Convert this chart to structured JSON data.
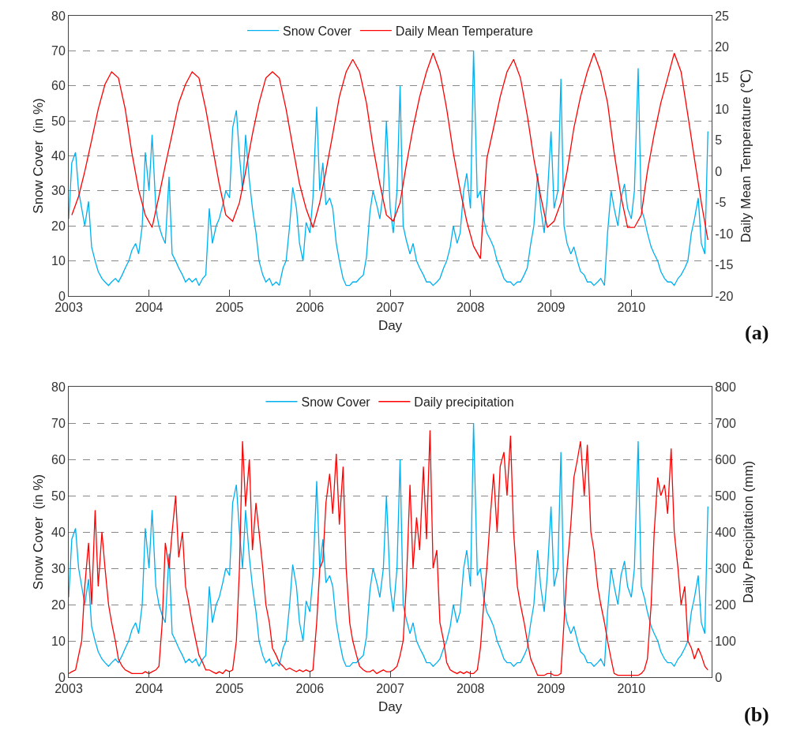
{
  "chart_data": [
    {
      "type": "line",
      "xlabel": "Day",
      "ylabel": "Snow Cover  (in %)",
      "y2label": "Daily Mean Temperature (℃)",
      "x": [
        "2003-01-01",
        "2003-01-15",
        "2003-02-01",
        "2003-02-15",
        "2003-03-01",
        "2003-03-15",
        "2003-04-01",
        "2003-04-15",
        "2003-05-01",
        "2003-05-15",
        "2003-06-01",
        "2003-06-15",
        "2003-07-01",
        "2003-07-15",
        "2003-08-01",
        "2003-08-15",
        "2003-09-01",
        "2003-09-15",
        "2003-10-01",
        "2003-10-15",
        "2003-11-01",
        "2003-11-15",
        "2003-12-01",
        "2003-12-15",
        "2004-01-01",
        "2004-01-15",
        "2004-02-01",
        "2004-02-15",
        "2004-03-01",
        "2004-03-15",
        "2004-04-01",
        "2004-04-15",
        "2004-05-01",
        "2004-05-15",
        "2004-06-01",
        "2004-06-15",
        "2004-07-01",
        "2004-07-15",
        "2004-08-01",
        "2004-08-15",
        "2004-09-01",
        "2004-09-15",
        "2004-10-01",
        "2004-10-15",
        "2004-11-01",
        "2004-11-15",
        "2004-12-01",
        "2004-12-15",
        "2005-01-01",
        "2005-01-15",
        "2005-02-01",
        "2005-02-15",
        "2005-03-01",
        "2005-03-15",
        "2005-04-01",
        "2005-04-15",
        "2005-05-01",
        "2005-05-15",
        "2005-06-01",
        "2005-06-15",
        "2005-07-01",
        "2005-07-15",
        "2005-08-01",
        "2005-08-15",
        "2005-09-01",
        "2005-09-15",
        "2005-10-01",
        "2005-10-15",
        "2005-11-01",
        "2005-11-15",
        "2005-12-01",
        "2005-12-15",
        "2006-01-01",
        "2006-01-15",
        "2006-02-01",
        "2006-02-15",
        "2006-03-01",
        "2006-03-15",
        "2006-04-01",
        "2006-04-15",
        "2006-05-01",
        "2006-05-15",
        "2006-06-01",
        "2006-06-15",
        "2006-07-01",
        "2006-07-15",
        "2006-08-01",
        "2006-08-15",
        "2006-09-01",
        "2006-09-15",
        "2006-10-01",
        "2006-10-15",
        "2006-11-01",
        "2006-11-15",
        "2006-12-01",
        "2006-12-15",
        "2007-01-01",
        "2007-01-15",
        "2007-02-01",
        "2007-02-15",
        "2007-03-01",
        "2007-03-15",
        "2007-04-01",
        "2007-04-15",
        "2007-05-01",
        "2007-05-15",
        "2007-06-01",
        "2007-06-15",
        "2007-07-01",
        "2007-07-15",
        "2007-08-01",
        "2007-08-15",
        "2007-09-01",
        "2007-09-15",
        "2007-10-01",
        "2007-10-15",
        "2007-11-01",
        "2007-11-15",
        "2007-12-01",
        "2007-12-15",
        "2008-01-01",
        "2008-01-15",
        "2008-02-01",
        "2008-02-15",
        "2008-03-01",
        "2008-03-15",
        "2008-04-01",
        "2008-04-15",
        "2008-05-01",
        "2008-05-15",
        "2008-06-01",
        "2008-06-15",
        "2008-07-01",
        "2008-07-15",
        "2008-08-01",
        "2008-08-15",
        "2008-09-01",
        "2008-09-15",
        "2008-10-01",
        "2008-10-15",
        "2008-11-01",
        "2008-11-15",
        "2008-12-01",
        "2008-12-15",
        "2009-01-01",
        "2009-01-15",
        "2009-02-01",
        "2009-02-15",
        "2009-03-01",
        "2009-03-15",
        "2009-04-01",
        "2009-04-15",
        "2009-05-01",
        "2009-05-15",
        "2009-06-01",
        "2009-06-15",
        "2009-07-01",
        "2009-07-15",
        "2009-08-01",
        "2009-08-15",
        "2009-09-01",
        "2009-09-15",
        "2009-10-01",
        "2009-10-15",
        "2009-11-01",
        "2009-11-15",
        "2009-12-01",
        "2009-12-15",
        "2010-01-01",
        "2010-01-15",
        "2010-02-01",
        "2010-02-15",
        "2010-03-01",
        "2010-03-15",
        "2010-04-01",
        "2010-04-15",
        "2010-05-01",
        "2010-05-15",
        "2010-06-01",
        "2010-06-15",
        "2010-07-01",
        "2010-07-15",
        "2010-08-01",
        "2010-08-15",
        "2010-09-01",
        "2010-09-15",
        "2010-10-01",
        "2010-10-15",
        "2010-11-01",
        "2010-11-15",
        "2010-12-01",
        "2010-12-15"
      ],
      "series": [
        {
          "name": "Snow Cover",
          "color": "#00b0f0",
          "values": [
            22,
            38,
            41,
            30,
            25,
            20,
            27,
            14,
            10,
            7,
            5,
            4,
            3,
            4,
            5,
            4,
            6,
            8,
            10,
            13,
            15,
            12,
            20,
            41,
            30,
            46,
            25,
            20,
            17,
            15,
            34,
            12,
            10,
            8,
            6,
            4,
            5,
            4,
            5,
            3,
            5,
            6,
            25,
            15,
            20,
            22,
            26,
            30,
            28,
            48,
            53,
            40,
            30,
            46,
            33,
            25,
            18,
            10,
            6,
            4,
            5,
            3,
            4,
            3,
            8,
            10,
            20,
            31,
            25,
            15,
            10,
            21,
            18,
            28,
            54,
            30,
            38,
            26,
            28,
            25,
            15,
            10,
            5,
            3,
            3,
            4,
            4,
            5,
            6,
            11,
            24,
            30,
            26,
            22,
            30,
            50,
            25,
            18,
            30,
            60,
            20,
            16,
            12,
            15,
            10,
            8,
            6,
            4,
            4,
            3,
            4,
            5,
            8,
            10,
            14,
            20,
            15,
            18,
            30,
            35,
            25,
            70,
            28,
            30,
            22,
            18,
            16,
            14,
            10,
            8,
            5,
            4,
            4,
            3,
            4,
            4,
            6,
            8,
            15,
            20,
            35,
            25,
            18,
            28,
            47,
            25,
            30,
            62,
            20,
            15,
            12,
            14,
            10,
            7,
            6,
            4,
            4,
            3,
            4,
            5,
            3,
            18,
            30,
            25,
            20,
            28,
            32,
            25,
            22,
            30,
            65,
            25,
            22,
            18,
            14,
            12,
            10,
            7,
            5,
            4,
            4,
            3,
            5,
            6,
            8,
            10,
            18,
            22,
            28,
            15,
            12,
            47
          ]
        },
        {
          "name": "Daily Mean Temperature",
          "color": "#ff0000",
          "axis": "y2",
          "x": [
            "2003-01-15",
            "2003-02-15",
            "2003-03-15",
            "2003-04-15",
            "2003-05-15",
            "2003-06-15",
            "2003-07-15",
            "2003-08-15",
            "2003-09-15",
            "2003-10-15",
            "2003-11-15",
            "2003-12-15",
            "2004-01-15",
            "2004-02-15",
            "2004-03-15",
            "2004-04-15",
            "2004-05-15",
            "2004-06-15",
            "2004-07-15",
            "2004-08-15",
            "2004-09-15",
            "2004-10-15",
            "2004-11-15",
            "2004-12-15",
            "2005-01-15",
            "2005-02-15",
            "2005-03-15",
            "2005-04-15",
            "2005-05-15",
            "2005-06-15",
            "2005-07-15",
            "2005-08-15",
            "2005-09-15",
            "2005-10-15",
            "2005-11-15",
            "2005-12-15",
            "2006-01-15",
            "2006-02-15",
            "2006-03-15",
            "2006-04-15",
            "2006-05-15",
            "2006-06-15",
            "2006-07-15",
            "2006-08-15",
            "2006-09-15",
            "2006-10-15",
            "2006-11-15",
            "2006-12-15",
            "2007-01-15",
            "2007-02-15",
            "2007-03-15",
            "2007-04-15",
            "2007-05-15",
            "2007-06-15",
            "2007-07-15",
            "2007-08-15",
            "2007-09-15",
            "2007-10-15",
            "2007-11-15",
            "2007-12-15",
            "2008-01-15",
            "2008-02-15",
            "2008-03-15",
            "2008-04-15",
            "2008-05-15",
            "2008-06-15",
            "2008-07-15",
            "2008-08-15",
            "2008-09-15",
            "2008-10-15",
            "2008-11-15",
            "2008-12-15",
            "2009-01-15",
            "2009-02-15",
            "2009-03-15",
            "2009-04-15",
            "2009-05-15",
            "2009-06-15",
            "2009-07-15",
            "2009-08-15",
            "2009-09-15",
            "2009-10-15",
            "2009-11-15",
            "2009-12-15",
            "2010-01-15",
            "2010-02-15",
            "2010-03-15",
            "2010-04-15",
            "2010-05-15",
            "2010-06-15",
            "2010-07-15",
            "2010-08-15",
            "2010-09-15",
            "2010-10-15",
            "2010-11-15",
            "2010-12-15"
          ],
          "values": [
            -7,
            -4,
            0,
            5,
            10,
            14,
            16,
            15,
            10,
            3,
            -3,
            -7,
            -9,
            -4,
            1,
            6,
            11,
            14,
            16,
            15,
            10,
            4,
            -2,
            -7,
            -8,
            -5,
            0,
            6,
            11,
            15,
            16,
            15,
            10,
            4,
            -2,
            -6,
            -9,
            -5,
            0,
            6,
            12,
            16,
            18,
            16,
            11,
            4,
            -2,
            -7,
            -8,
            -5,
            1,
            7,
            12,
            16,
            19,
            16,
            10,
            3,
            -3,
            -8,
            -12,
            -14,
            2,
            7,
            12,
            16,
            18,
            15,
            9,
            2,
            -4,
            -9,
            -8,
            -5,
            0,
            7,
            12,
            16,
            19,
            16,
            11,
            3,
            -4,
            -9,
            -9,
            -7,
            0,
            6,
            11,
            15,
            19,
            16,
            9,
            2,
            -5,
            -11
          ]
        }
      ],
      "xlim": [
        "2003",
        "2011"
      ],
      "xticks": [
        "2003",
        "2004",
        "2005",
        "2006",
        "2007",
        "2008",
        "2009",
        "2010",
        {
          "value": "2011",
          "label": null
        }
      ],
      "ylim": [
        0,
        80
      ],
      "yticks": [
        0,
        10,
        20,
        30,
        40,
        50,
        60,
        70,
        80
      ],
      "y2lim": [
        -20,
        25
      ],
      "y2ticks": [
        -20,
        -15,
        -10,
        -5,
        0,
        5,
        10,
        15,
        20,
        25
      ],
      "grid": "y",
      "legend": "top",
      "annotations": [
        "(a)"
      ]
    },
    {
      "type": "line",
      "xlabel": "Day",
      "ylabel": "Snow Cover  (in %)",
      "y2label": "Daily Precipitation (mm)",
      "x": [
        "2003-01-01",
        "2003-01-15",
        "2003-02-01",
        "2003-02-15",
        "2003-03-01",
        "2003-03-15",
        "2003-04-01",
        "2003-04-15",
        "2003-05-01",
        "2003-05-15",
        "2003-06-01",
        "2003-06-15",
        "2003-07-01",
        "2003-07-15",
        "2003-08-01",
        "2003-08-15",
        "2003-09-01",
        "2003-09-15",
        "2003-10-01",
        "2003-10-15",
        "2003-11-01",
        "2003-11-15",
        "2003-12-01",
        "2003-12-15",
        "2004-01-01",
        "2004-01-15",
        "2004-02-01",
        "2004-02-15",
        "2004-03-01",
        "2004-03-15",
        "2004-04-01",
        "2004-04-15",
        "2004-05-01",
        "2004-05-15",
        "2004-06-01",
        "2004-06-15",
        "2004-07-01",
        "2004-07-15",
        "2004-08-01",
        "2004-08-15",
        "2004-09-01",
        "2004-09-15",
        "2004-10-01",
        "2004-10-15",
        "2004-11-01",
        "2004-11-15",
        "2004-12-01",
        "2004-12-15",
        "2005-01-01",
        "2005-01-15",
        "2005-02-01",
        "2005-02-15",
        "2005-03-01",
        "2005-03-15",
        "2005-04-01",
        "2005-04-15",
        "2005-05-01",
        "2005-05-15",
        "2005-06-01",
        "2005-06-15",
        "2005-07-01",
        "2005-07-15",
        "2005-08-01",
        "2005-08-15",
        "2005-09-01",
        "2005-09-15",
        "2005-10-01",
        "2005-10-15",
        "2005-11-01",
        "2005-11-15",
        "2005-12-01",
        "2005-12-15",
        "2006-01-01",
        "2006-01-15",
        "2006-02-01",
        "2006-02-15",
        "2006-03-01",
        "2006-03-15",
        "2006-04-01",
        "2006-04-15",
        "2006-05-01",
        "2006-05-15",
        "2006-06-01",
        "2006-06-15",
        "2006-07-01",
        "2006-07-15",
        "2006-08-01",
        "2006-08-15",
        "2006-09-01",
        "2006-09-15",
        "2006-10-01",
        "2006-10-15",
        "2006-11-01",
        "2006-11-15",
        "2006-12-01",
        "2006-12-15",
        "2007-01-01",
        "2007-01-15",
        "2007-02-01",
        "2007-02-15",
        "2007-03-01",
        "2007-03-15",
        "2007-04-01",
        "2007-04-15",
        "2007-05-01",
        "2007-05-15",
        "2007-06-01",
        "2007-06-15",
        "2007-07-01",
        "2007-07-15",
        "2007-08-01",
        "2007-08-15",
        "2007-09-01",
        "2007-09-15",
        "2007-10-01",
        "2007-10-15",
        "2007-11-01",
        "2007-11-15",
        "2007-12-01",
        "2007-12-15",
        "2008-01-01",
        "2008-01-15",
        "2008-02-01",
        "2008-02-15",
        "2008-03-01",
        "2008-03-15",
        "2008-04-01",
        "2008-04-15",
        "2008-05-01",
        "2008-05-15",
        "2008-06-01",
        "2008-06-15",
        "2008-07-01",
        "2008-07-15",
        "2008-08-01",
        "2008-08-15",
        "2008-09-01",
        "2008-09-15",
        "2008-10-01",
        "2008-10-15",
        "2008-11-01",
        "2008-11-15",
        "2008-12-01",
        "2008-12-15",
        "2009-01-01",
        "2009-01-15",
        "2009-02-01",
        "2009-02-15",
        "2009-03-01",
        "2009-03-15",
        "2009-04-01",
        "2009-04-15",
        "2009-05-01",
        "2009-05-15",
        "2009-06-01",
        "2009-06-15",
        "2009-07-01",
        "2009-07-15",
        "2009-08-01",
        "2009-08-15",
        "2009-09-01",
        "2009-09-15",
        "2009-10-01",
        "2009-10-15",
        "2009-11-01",
        "2009-11-15",
        "2009-12-01",
        "2009-12-15",
        "2010-01-01",
        "2010-01-15",
        "2010-02-01",
        "2010-02-15",
        "2010-03-01",
        "2010-03-15",
        "2010-04-01",
        "2010-04-15",
        "2010-05-01",
        "2010-05-15",
        "2010-06-01",
        "2010-06-15",
        "2010-07-01",
        "2010-07-15",
        "2010-08-01",
        "2010-08-15",
        "2010-09-01",
        "2010-09-15",
        "2010-10-01",
        "2010-10-15",
        "2010-11-01",
        "2010-11-15",
        "2010-12-01",
        "2010-12-15"
      ],
      "series": [
        {
          "name": "Snow Cover",
          "color": "#00b0f0",
          "values": [
            22,
            38,
            41,
            30,
            25,
            20,
            27,
            14,
            10,
            7,
            5,
            4,
            3,
            4,
            5,
            4,
            6,
            8,
            10,
            13,
            15,
            12,
            20,
            41,
            30,
            46,
            25,
            20,
            17,
            15,
            34,
            12,
            10,
            8,
            6,
            4,
            5,
            4,
            5,
            3,
            5,
            6,
            25,
            15,
            20,
            22,
            26,
            30,
            28,
            48,
            53,
            40,
            30,
            46,
            33,
            25,
            18,
            10,
            6,
            4,
            5,
            3,
            4,
            3,
            8,
            10,
            20,
            31,
            25,
            15,
            10,
            21,
            18,
            28,
            54,
            30,
            38,
            26,
            28,
            25,
            15,
            10,
            5,
            3,
            3,
            4,
            4,
            5,
            6,
            11,
            24,
            30,
            26,
            22,
            30,
            50,
            25,
            18,
            30,
            60,
            20,
            16,
            12,
            15,
            10,
            8,
            6,
            4,
            4,
            3,
            4,
            5,
            8,
            10,
            14,
            20,
            15,
            18,
            30,
            35,
            25,
            70,
            28,
            30,
            22,
            18,
            16,
            14,
            10,
            8,
            5,
            4,
            4,
            3,
            4,
            4,
            6,
            8,
            15,
            20,
            35,
            25,
            18,
            28,
            47,
            25,
            30,
            62,
            20,
            15,
            12,
            14,
            10,
            7,
            6,
            4,
            4,
            3,
            4,
            5,
            3,
            18,
            30,
            25,
            20,
            28,
            32,
            25,
            22,
            30,
            65,
            25,
            22,
            18,
            14,
            12,
            10,
            7,
            5,
            4,
            4,
            3,
            5,
            6,
            8,
            10,
            18,
            22,
            28,
            15,
            12,
            47
          ]
        },
        {
          "name": "Daily precipitation",
          "color": "#ff0000",
          "axis": "y2",
          "values": [
            10,
            15,
            20,
            60,
            100,
            250,
            370,
            200,
            460,
            250,
            400,
            300,
            200,
            150,
            100,
            50,
            30,
            20,
            15,
            10,
            10,
            10,
            10,
            15,
            10,
            15,
            20,
            30,
            150,
            370,
            300,
            400,
            500,
            330,
            400,
            250,
            200,
            150,
            100,
            60,
            40,
            20,
            20,
            15,
            10,
            15,
            10,
            20,
            15,
            20,
            100,
            300,
            650,
            470,
            600,
            350,
            480,
            400,
            300,
            200,
            150,
            80,
            60,
            40,
            30,
            20,
            25,
            20,
            15,
            20,
            15,
            20,
            15,
            20,
            150,
            300,
            320,
            480,
            560,
            450,
            615,
            420,
            580,
            300,
            150,
            100,
            60,
            30,
            20,
            15,
            15,
            20,
            10,
            15,
            20,
            15,
            15,
            20,
            30,
            60,
            100,
            250,
            530,
            300,
            440,
            350,
            580,
            380,
            680,
            300,
            350,
            150,
            100,
            40,
            20,
            15,
            10,
            15,
            10,
            15,
            10,
            10,
            20,
            80,
            200,
            300,
            450,
            560,
            400,
            580,
            620,
            500,
            665,
            400,
            250,
            200,
            150,
            100,
            50,
            30,
            5,
            5,
            5,
            10,
            10,
            5,
            5,
            10,
            150,
            300,
            420,
            550,
            600,
            650,
            500,
            640,
            400,
            350,
            250,
            200,
            150,
            100,
            50,
            10,
            5,
            5,
            5,
            5,
            5,
            5,
            5,
            10,
            20,
            50,
            200,
            400,
            550,
            500,
            530,
            450,
            630,
            400,
            300,
            200,
            250,
            100,
            80,
            50,
            80,
            60,
            30,
            20
          ]
        }
      ],
      "xlim": [
        "2003",
        "2011"
      ],
      "xticks": [
        "2003",
        "2004",
        "2005",
        "2006",
        "2007",
        "2008",
        "2009",
        "2010",
        {
          "value": "2011",
          "label": null
        }
      ],
      "ylim": [
        0,
        80
      ],
      "yticks": [
        0,
        10,
        20,
        30,
        40,
        50,
        60,
        70,
        80
      ],
      "y2lim": [
        0,
        800
      ],
      "y2ticks": [
        0,
        100,
        200,
        300,
        400,
        500,
        600,
        700,
        800
      ],
      "grid": "y",
      "legend": "top",
      "annotations": [
        "(b)"
      ]
    }
  ]
}
